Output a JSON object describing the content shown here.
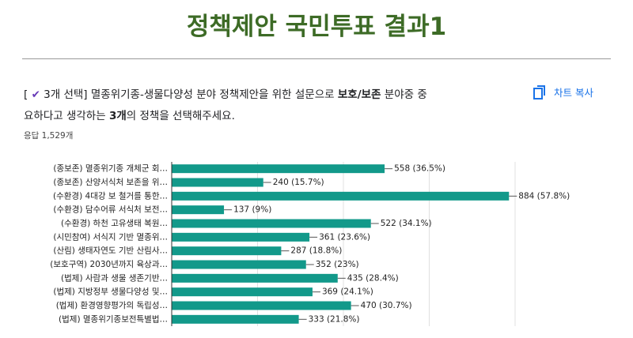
{
  "page_title": "정책제안 국민투표 결과1",
  "question": {
    "line1": [
      {
        "text": "[ ",
        "bold": false
      },
      {
        "text": "✔",
        "bold": false,
        "icon": true
      },
      {
        "text": " 3개 선택] 멸종위기종-생물다양성 분야 정책제안을 위한 설문으로 ",
        "bold": false
      },
      {
        "text": "보호/보존",
        "bold": true
      },
      {
        "text": " 분야중 중",
        "bold": false
      }
    ],
    "line2": [
      {
        "text": "요하다고 생각하는 ",
        "bold": false
      },
      {
        "text": "3개",
        "bold": true
      },
      {
        "text": "의 정책을 선택해주세요.",
        "bold": false
      }
    ]
  },
  "copy_button": "차트 복사",
  "responses": "응답 1,529개",
  "chart_data": {
    "type": "hbar",
    "categories": [
      "(종보존) 멸종위기종 개체군 회…",
      "(종보존) 산양서식처 보존을 위…",
      "(수환경) 4대강 보 철거를 통한…",
      "(수환경) 담수어류 서식처 보전…",
      "(수환경) 하천 고유생태 복원…",
      "(시민참여) 서식지 기반 멸종위…",
      "(산림) 생태자연도 기반 산림사…",
      "(보호구역) 2030년까지 육상과…",
      "(법제) 사람과 생물 생존기반…",
      "(법제) 지방정부 생물다양성 및…",
      "(법제) 환경영향평가의 독립성…",
      "(법제) 멸종위기종보전특별법…"
    ],
    "values": [
      558,
      240,
      884,
      137,
      522,
      361,
      287,
      352,
      435,
      369,
      470,
      333
    ],
    "value_labels": [
      "558 (36.5%)",
      "240 (15.7%)",
      "884 (57.8%)",
      "137 (9%)",
      "522 (34.1%)",
      "361 (23.6%)",
      "287 (18.8%)",
      "352 (23%)",
      "435 (28.4%)",
      "369 (24.1%)",
      "470 (30.7%)",
      "333 (21.8%)"
    ],
    "color": "#12998a",
    "xlim": [
      0,
      900
    ],
    "xticks": [
      0,
      225,
      450,
      675,
      900
    ],
    "grid": true
  }
}
